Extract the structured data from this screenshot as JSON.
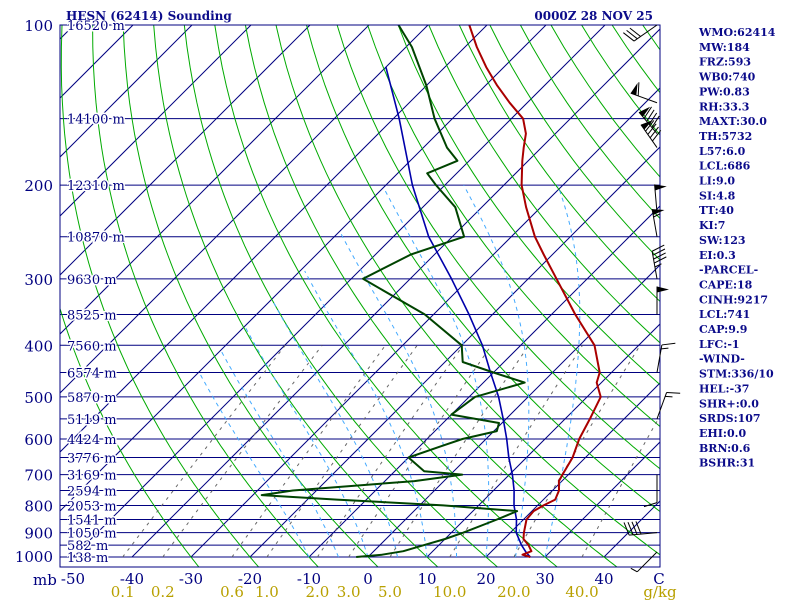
{
  "chart_data": {
    "type": "skew-t",
    "title_left": "HESN (62414) Sounding",
    "title_right": "0000Z 28 NOV 25",
    "pressure_axis": {
      "unit": "mb",
      "labels": [
        "100",
        "200",
        "300",
        "400",
        "500",
        "600",
        "700",
        "800",
        "900",
        "1000"
      ],
      "levels": [
        100,
        200,
        300,
        400,
        500,
        600,
        700,
        800,
        900,
        1000
      ]
    },
    "temperature_axis": {
      "labels": [
        "-50",
        "-40",
        "-30",
        "-20",
        "-10",
        "0",
        "10",
        "20",
        "30",
        "40",
        "C"
      ],
      "values": [
        -50,
        -40,
        -30,
        -20,
        -10,
        0,
        10,
        20,
        30,
        40
      ]
    },
    "mixing_ratio_axis": {
      "labels": [
        "0.1",
        "0.2",
        "0.6",
        "1.0",
        "2.0",
        "3.0",
        "5.0",
        "10.0",
        "20.0",
        "40.0",
        "g/kg"
      ],
      "values": [
        0.1,
        0.2,
        0.6,
        1.0,
        2.0,
        3.0,
        5.0,
        10.0,
        20.0,
        40.0
      ]
    },
    "heights": [
      {
        "p": 100,
        "label": "16520 m"
      },
      {
        "p": 150,
        "label": "14100 m"
      },
      {
        "p": 200,
        "label": "12310 m"
      },
      {
        "p": 250,
        "label": "10870 m"
      },
      {
        "p": 300,
        "label": "9630 m"
      },
      {
        "p": 350,
        "label": "8525 m"
      },
      {
        "p": 400,
        "label": "7560 m"
      },
      {
        "p": 450,
        "label": "6574 m"
      },
      {
        "p": 500,
        "label": "5870 m"
      },
      {
        "p": 550,
        "label": "5119 m"
      },
      {
        "p": 600,
        "label": "4424 m"
      },
      {
        "p": 650,
        "label": "3776 m"
      },
      {
        "p": 700,
        "label": "3169 m"
      },
      {
        "p": 750,
        "label": "2594 m"
      },
      {
        "p": 800,
        "label": "2053 m"
      },
      {
        "p": 850,
        "label": "1541 m"
      },
      {
        "p": 900,
        "label": "1050 m"
      },
      {
        "p": 950,
        "label": "582 m"
      },
      {
        "p": 1000,
        "label": "138 m"
      }
    ],
    "temperature_profile": [
      [
        1000,
        27.5
      ],
      [
        990,
        25.8
      ],
      [
        975,
        26.7
      ],
      [
        950,
        25.2
      ],
      [
        925,
        23.3
      ],
      [
        900,
        22.3
      ],
      [
        850,
        20.5
      ],
      [
        820,
        20.3
      ],
      [
        800,
        21.0
      ],
      [
        780,
        22.0
      ],
      [
        750,
        21.1
      ],
      [
        720,
        19.5
      ],
      [
        700,
        19.0
      ],
      [
        650,
        17.8
      ],
      [
        600,
        15.8
      ],
      [
        550,
        14.2
      ],
      [
        500,
        12.3
      ],
      [
        470,
        9.2
      ],
      [
        450,
        8.0
      ],
      [
        400,
        2.5
      ],
      [
        350,
        -6.0
      ],
      [
        300,
        -15.2
      ],
      [
        270,
        -21.5
      ],
      [
        250,
        -26.0
      ],
      [
        220,
        -32.5
      ],
      [
        200,
        -37.0
      ],
      [
        180,
        -41.0
      ],
      [
        170,
        -43.0
      ],
      [
        160,
        -45.0
      ],
      [
        150,
        -48.0
      ],
      [
        140,
        -53.0
      ],
      [
        130,
        -58.0
      ],
      [
        120,
        -63.0
      ],
      [
        110,
        -68.0
      ],
      [
        100,
        -73.0
      ]
    ],
    "dewpoint_profile": [
      [
        1000,
        -2.0
      ],
      [
        990,
        2.0
      ],
      [
        975,
        5.0
      ],
      [
        950,
        7.5
      ],
      [
        925,
        10.0
      ],
      [
        900,
        12.0
      ],
      [
        850,
        15.5
      ],
      [
        820,
        17.5
      ],
      [
        800,
        4.0
      ],
      [
        780,
        -15.0
      ],
      [
        765,
        -28.5
      ],
      [
        750,
        -24.0
      ],
      [
        720,
        -5.0
      ],
      [
        700,
        2.0
      ],
      [
        690,
        -5.0
      ],
      [
        650,
        -10.0
      ],
      [
        620,
        -6.5
      ],
      [
        600,
        -4.0
      ],
      [
        580,
        0.5
      ],
      [
        560,
        -0.5
      ],
      [
        540,
        -10.0
      ],
      [
        520,
        -9.5
      ],
      [
        500,
        -9.0
      ],
      [
        470,
        -3.0
      ],
      [
        450,
        -10.0
      ],
      [
        430,
        -17.0
      ],
      [
        400,
        -20.0
      ],
      [
        350,
        -31.5
      ],
      [
        300,
        -48.0
      ],
      [
        270,
        -44.0
      ],
      [
        250,
        -38.0
      ],
      [
        220,
        -44.5
      ],
      [
        200,
        -51.5
      ],
      [
        190,
        -55.0
      ],
      [
        180,
        -52.0
      ],
      [
        170,
        -56.0
      ],
      [
        150,
        -63.0
      ],
      [
        130,
        -70.0
      ],
      [
        110,
        -79.0
      ],
      [
        100,
        -85.0
      ]
    ],
    "parcel_profile": [
      [
        1000,
        27.5
      ],
      [
        980,
        26.0
      ],
      [
        950,
        24.0
      ],
      [
        900,
        21.0
      ],
      [
        850,
        18.8
      ],
      [
        800,
        16.0
      ],
      [
        750,
        13.5
      ],
      [
        700,
        10.5
      ],
      [
        650,
        7.0
      ],
      [
        600,
        3.5
      ],
      [
        550,
        -0.5
      ],
      [
        500,
        -5.0
      ],
      [
        450,
        -10.5
      ],
      [
        400,
        -16.5
      ],
      [
        350,
        -24.0
      ],
      [
        300,
        -33.0
      ],
      [
        250,
        -44.0
      ],
      [
        200,
        -55.5
      ],
      [
        150,
        -69.0
      ],
      [
        120,
        -80.0
      ]
    ],
    "wind_barbs": [
      {
        "p": 1000,
        "dir": 225,
        "spd": 5
      },
      {
        "p": 900,
        "dir": 265,
        "spd": 40
      },
      {
        "p": 700,
        "dir": 180,
        "spd": 10
      },
      {
        "p": 550,
        "dir": 20,
        "spd": 15
      },
      {
        "p": 450,
        "dir": 10,
        "spd": 15
      },
      {
        "p": 350,
        "dir": 0,
        "spd": 50
      },
      {
        "p": 300,
        "dir": 350,
        "spd": 45
      },
      {
        "p": 250,
        "dir": 350,
        "spd": 55
      },
      {
        "p": 225,
        "dir": 355,
        "spd": 50
      },
      {
        "p": 170,
        "dir": 325,
        "spd": 90
      },
      {
        "p": 160,
        "dir": 320,
        "spd": 90
      },
      {
        "p": 140,
        "dir": 290,
        "spd": 60
      },
      {
        "p": 100,
        "dir": 235,
        "spd": 30
      }
    ],
    "colors": {
      "temperature": "#aa0000",
      "dewpoint": "#004400",
      "parcel": "#0000aa",
      "isobar": "#000080",
      "isotherm": "#000080",
      "dry_adiabat": "#00aa00",
      "moist_adiabat": "#44aaff",
      "mixing_ratio": "#666666",
      "axis_text": "#b8a000"
    }
  },
  "indices": [
    "WMO:62414",
    "MW:184",
    "FRZ:593",
    "WB0:740",
    "PW:0.83",
    "RH:33.3",
    "MAXT:30.0",
    "TH:5732",
    "L57:6.0",
    "LCL:686",
    "LI:9.0",
    "SI:4.8",
    "TT:40",
    "KI:7",
    "SW:123",
    "EI:0.3",
    "-PARCEL-",
    "CAPE:18",
    "CINH:9217",
    "LCL:741",
    "CAP:9.9",
    "LFC:-1",
    "-WIND-",
    "STM:336/10",
    "HEL:-37",
    "SHR+:0.0",
    "SRDS:107",
    "EHI:0.0",
    "BRN:0.6",
    "BSHR:31"
  ]
}
